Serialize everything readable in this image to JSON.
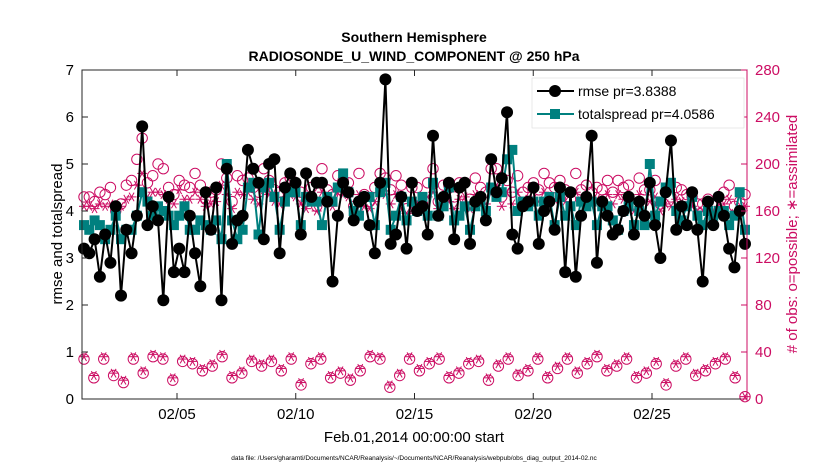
{
  "chart_data": {
    "type": "line",
    "title": "Southern Hemisphere",
    "subtitle": "RADIOSONDE_U_WIND_COMPONENT @ 250 hPa",
    "xlabel": "Feb.01,2014 00:00:00 start",
    "ylabel_left": "rmse and totalspread",
    "ylabel_right": "# of obs: o=possible; ∗=assimilated",
    "footnote": "data file: /Users/gharamti/Documents/NCAR/Reanalysis/~/Documents/NCAR/Reanalysis/webpub/obs_diag_output_2014-02.nc",
    "x_ticks": [
      "02/05",
      "02/10",
      "02/15",
      "02/20",
      "02/25"
    ],
    "x_tick_days": [
      5,
      10,
      15,
      20,
      25
    ],
    "xlim_days": [
      1,
      29
    ],
    "ylim_left": [
      0,
      7
    ],
    "y_ticks_left": [
      "0",
      "1",
      "2",
      "3",
      "4",
      "5",
      "6",
      "7"
    ],
    "ylim_right": [
      0,
      280
    ],
    "y_ticks_right": [
      "0",
      "40",
      "80",
      "120",
      "160",
      "200",
      "240",
      "280"
    ],
    "grid": false,
    "legend_placement": "top-right",
    "colors": {
      "rmse": "#000000",
      "totalspread": "#00807f",
      "obs": "#cc0d63"
    },
    "series": [
      {
        "name": "rmse pr=3.8388",
        "axis": "left",
        "values": [
          3.2,
          3.1,
          3.4,
          2.6,
          3.5,
          2.9,
          4.1,
          2.2,
          3.6,
          3.1,
          3.9,
          5.8,
          3.7,
          4.1,
          3.8,
          2.1,
          4.3,
          2.7,
          3.2,
          2.7,
          3.9,
          3.1,
          2.4,
          4.4,
          3.6,
          4.5,
          2.1,
          4.9,
          3.3,
          3.8,
          3.9,
          5.3,
          4.9,
          4.6,
          3.4,
          5.0,
          5.1,
          3.1,
          4.5,
          4.8,
          4.6,
          3.5,
          4.8,
          4.3,
          4.6,
          4.6,
          4.2,
          2.5,
          3.9,
          4.6,
          4.4,
          3.8,
          4.2,
          4.3,
          3.7,
          3.1,
          4.6,
          6.8,
          3.3,
          3.5,
          4.3,
          3.2,
          4.6,
          4.0,
          4.1,
          3.5,
          5.6,
          3.9,
          4.3,
          4.6,
          3.4,
          4.5,
          4.6,
          3.3,
          4.2,
          4.3,
          3.8,
          5.1,
          4.4,
          4.7,
          6.1,
          3.5,
          3.2,
          4.1,
          4.2,
          4.5,
          3.3,
          4.0,
          4.2,
          3.6,
          4.5,
          2.7,
          4.4,
          2.6,
          3.9,
          4.3,
          5.6,
          2.9,
          4.2,
          3.9,
          3.5,
          3.6,
          4.0,
          4.3,
          3.5,
          4.2,
          3.9,
          4.6,
          3.7,
          3.0,
          4.4,
          5.5,
          3.6,
          4.1,
          3.7,
          4.4,
          3.6,
          2.5,
          4.2,
          3.7,
          4.3,
          3.9,
          3.2,
          2.8,
          4.0,
          3.3
        ]
      },
      {
        "name": "totalspread pr=4.0586",
        "axis": "left",
        "values": [
          3.7,
          3.6,
          3.8,
          3.7,
          3.4,
          3.6,
          3.9,
          3.4,
          3.6,
          3.6,
          3.9,
          4.4,
          4.2,
          3.9,
          4.1,
          4.0,
          3.9,
          3.7,
          3.9,
          4.1,
          3.6,
          3.6,
          3.8,
          3.7,
          3.6,
          3.8,
          3.4,
          5.0,
          3.8,
          3.4,
          3.6,
          4.5,
          4.6,
          3.5,
          4.5,
          4.6,
          4.3,
          3.6,
          4.2,
          4.4,
          4.4,
          3.7,
          4.3,
          4.2,
          4.2,
          3.7,
          4.3,
          4.2,
          4.5,
          4.8,
          4.4,
          4.0,
          3.9,
          4.3,
          4.3,
          3.7,
          4.4,
          4.6,
          3.6,
          3.9,
          4.3,
          3.8,
          4.2,
          4.0,
          4.3,
          3.9,
          4.6,
          3.9,
          4.1,
          4.5,
          3.8,
          3.9,
          4.1,
          3.6,
          4.1,
          4.2,
          4.0,
          4.5,
          4.3,
          4.4,
          5.1,
          5.3,
          4.0,
          4.2,
          4.1,
          4.2,
          3.9,
          4.2,
          4.3,
          3.7,
          4.3,
          3.9,
          4.1,
          3.7,
          4.2,
          4.1,
          4.2,
          3.7,
          4.1,
          4.1,
          3.8,
          3.6,
          4.0,
          4.1,
          3.7,
          4.0,
          3.7,
          5.0,
          3.9,
          4.2,
          4.5,
          4.6,
          4.0,
          3.8,
          4.1,
          4.3,
          3.9,
          3.7,
          4.0,
          3.9,
          4.0,
          4.0,
          3.7,
          3.9,
          4.4,
          3.6
        ]
      },
      {
        "name": "possible",
        "axis": "right",
        "marker": "circle",
        "values": [
          172,
          172,
          168,
          176,
          174,
          180,
          160,
          166,
          182,
          186,
          204,
          222,
          184,
          190,
          200,
          196,
          180,
          174,
          186,
          182,
          180,
          192,
          182,
          170,
          176,
          178,
          200,
          188,
          168,
          190,
          186,
          188,
          180,
          176,
          196,
          186,
          178,
          176,
          184,
          188,
          184,
          176,
          168,
          180,
          164,
          196,
          178,
          174,
          190,
          186,
          184,
          164,
          192,
          174,
          168,
          180,
          192,
          188,
          178,
          190,
          182,
          162,
          180,
          180,
          166,
          184,
          196,
          168,
          182,
          182,
          172,
          184,
          184,
          170,
          188,
          180,
          176,
          196,
          196,
          172,
          186,
          176,
          190,
          176,
          180,
          184,
          178,
          192,
          184,
          180,
          186,
          178,
          170,
          192,
          178,
          182,
          176,
          180,
          178,
          186,
          176,
          186,
          180,
          182,
          166,
          188,
          178,
          178,
          186,
          166,
          176,
          172,
          180,
          178,
          174,
          172,
          166,
          166,
          170,
          166,
          172,
          176,
          182,
          164,
          168,
          174
        ]
      },
      {
        "name": "assimilated",
        "axis": "right",
        "marker": "asterisk",
        "values": [
          164,
          164,
          162,
          166,
          164,
          166,
          160,
          164,
          170,
          172,
          182,
          192,
          172,
          176,
          176,
          174,
          170,
          166,
          178,
          170,
          170,
          176,
          170,
          164,
          166,
          168,
          182,
          174,
          162,
          176,
          174,
          176,
          170,
          166,
          178,
          174,
          168,
          166,
          172,
          174,
          172,
          166,
          162,
          168,
          160,
          176,
          168,
          164,
          176,
          174,
          172,
          160,
          174,
          164,
          162,
          168,
          176,
          174,
          166,
          174,
          172,
          158,
          168,
          168,
          162,
          172,
          176,
          162,
          170,
          168,
          162,
          170,
          172,
          162,
          174,
          170,
          166,
          178,
          182,
          164,
          176,
          166,
          176,
          166,
          170,
          170,
          168,
          176,
          172,
          170,
          172,
          168,
          162,
          176,
          168,
          170,
          166,
          170,
          168,
          174,
          166,
          174,
          170,
          172,
          160,
          174,
          168,
          168,
          172,
          160,
          166,
          164,
          170,
          168,
          164,
          164,
          160,
          160,
          162,
          160,
          164,
          166,
          170,
          158,
          162,
          164
        ]
      },
      {
        "name": "possible (low)",
        "axis": "right",
        "marker": "circle",
        "values": [
          34,
          18,
          34,
          20,
          14,
          34,
          22,
          36,
          34,
          16,
          32,
          30,
          24,
          28,
          36,
          18,
          22,
          32,
          28,
          32,
          24,
          34,
          12,
          30,
          34,
          18,
          22,
          16,
          24,
          36,
          34,
          10,
          20,
          34,
          24,
          30,
          34,
          18,
          22,
          30,
          32,
          16,
          28,
          34,
          20,
          24,
          34,
          18,
          26,
          34,
          22,
          30,
          36,
          24,
          28,
          34,
          18,
          22,
          30,
          12,
          28,
          34,
          20,
          24,
          30,
          34,
          18,
          2
        ]
      },
      {
        "name": "assimilated (low)",
        "axis": "right",
        "marker": "asterisk",
        "values": [
          36,
          20,
          36,
          22,
          16,
          36,
          24,
          38,
          36,
          18,
          34,
          32,
          26,
          30,
          38,
          20,
          24,
          34,
          30,
          34,
          26,
          36,
          14,
          32,
          36,
          20,
          24,
          18,
          26,
          38,
          36,
          12,
          22,
          36,
          26,
          32,
          36,
          20,
          24,
          32,
          34,
          18,
          30,
          36,
          22,
          26,
          36,
          20,
          28,
          36,
          24,
          32,
          38,
          26,
          30,
          36,
          20,
          24,
          32,
          14,
          30,
          36,
          22,
          26,
          32,
          36,
          20,
          2
        ]
      }
    ]
  }
}
